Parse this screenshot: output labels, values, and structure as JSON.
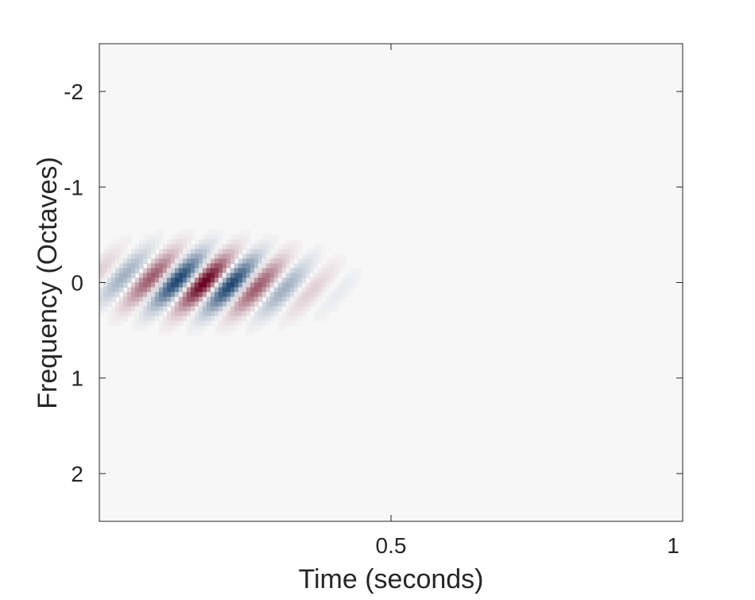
{
  "chart_data": {
    "type": "heatmap",
    "title": "",
    "xlabel": "Time (seconds)",
    "ylabel": "Frequency (Octaves)",
    "xlim": [
      0,
      1
    ],
    "ylim": [
      2.5,
      -2.5
    ],
    "y_axis_reversed": true,
    "xticks": [
      0.5,
      1
    ],
    "xtick_labels": [
      "0.5",
      "1"
    ],
    "yticks": [
      -2,
      -1,
      0,
      1,
      2
    ],
    "ytick_labels": [
      "-2",
      "-1",
      "0",
      "1",
      "2"
    ],
    "colormap": "diverging red-white-blue",
    "colors": {
      "positive": "#67001f",
      "negative": "#053061",
      "zero": "#f7f7f7"
    },
    "grid": false,
    "pattern": {
      "description_values": {
        "center_time_s": 0.18,
        "center_freq_oct": 0.0,
        "temporal_width_s": 0.1,
        "spectral_width_oct": 0.2,
        "drift_oct_per_s": 0.9,
        "stripe_period_s": 0.1
      }
    }
  }
}
